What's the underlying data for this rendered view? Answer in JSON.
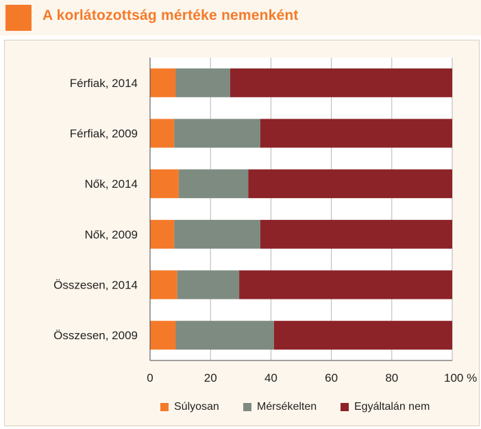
{
  "header": {
    "title": "A  korlátozottság mértéke nemenként",
    "accent_color": "#f47a2a"
  },
  "chart_data": {
    "type": "bar",
    "orientation": "horizontal",
    "stacked": true,
    "categories": [
      "Férfiak, 2014",
      "Férfiak, 2009",
      "Nők, 2014",
      "Nők, 2009",
      "Összesen, 2014",
      "Összesen, 2009"
    ],
    "series": [
      {
        "name": "Súlyosan",
        "color": "#f47a2a",
        "values": [
          8.5,
          8,
          9.5,
          8,
          9,
          8.5
        ]
      },
      {
        "name": "Mérsékelten",
        "color": "#7d8b80",
        "values": [
          18,
          28.5,
          23,
          28.5,
          20.5,
          32.5
        ]
      },
      {
        "name": "Egyáltalán nem",
        "color": "#8c2328",
        "values": [
          73.5,
          63.5,
          67.5,
          63.5,
          70.5,
          59
        ]
      }
    ],
    "xlim": [
      0,
      100
    ],
    "xticks": [
      0,
      20,
      40,
      60,
      80,
      100
    ],
    "xtick_labels": [
      "0",
      "20",
      "40",
      "60",
      "80",
      "100 %"
    ],
    "grid": true,
    "legend_position": "bottom"
  }
}
